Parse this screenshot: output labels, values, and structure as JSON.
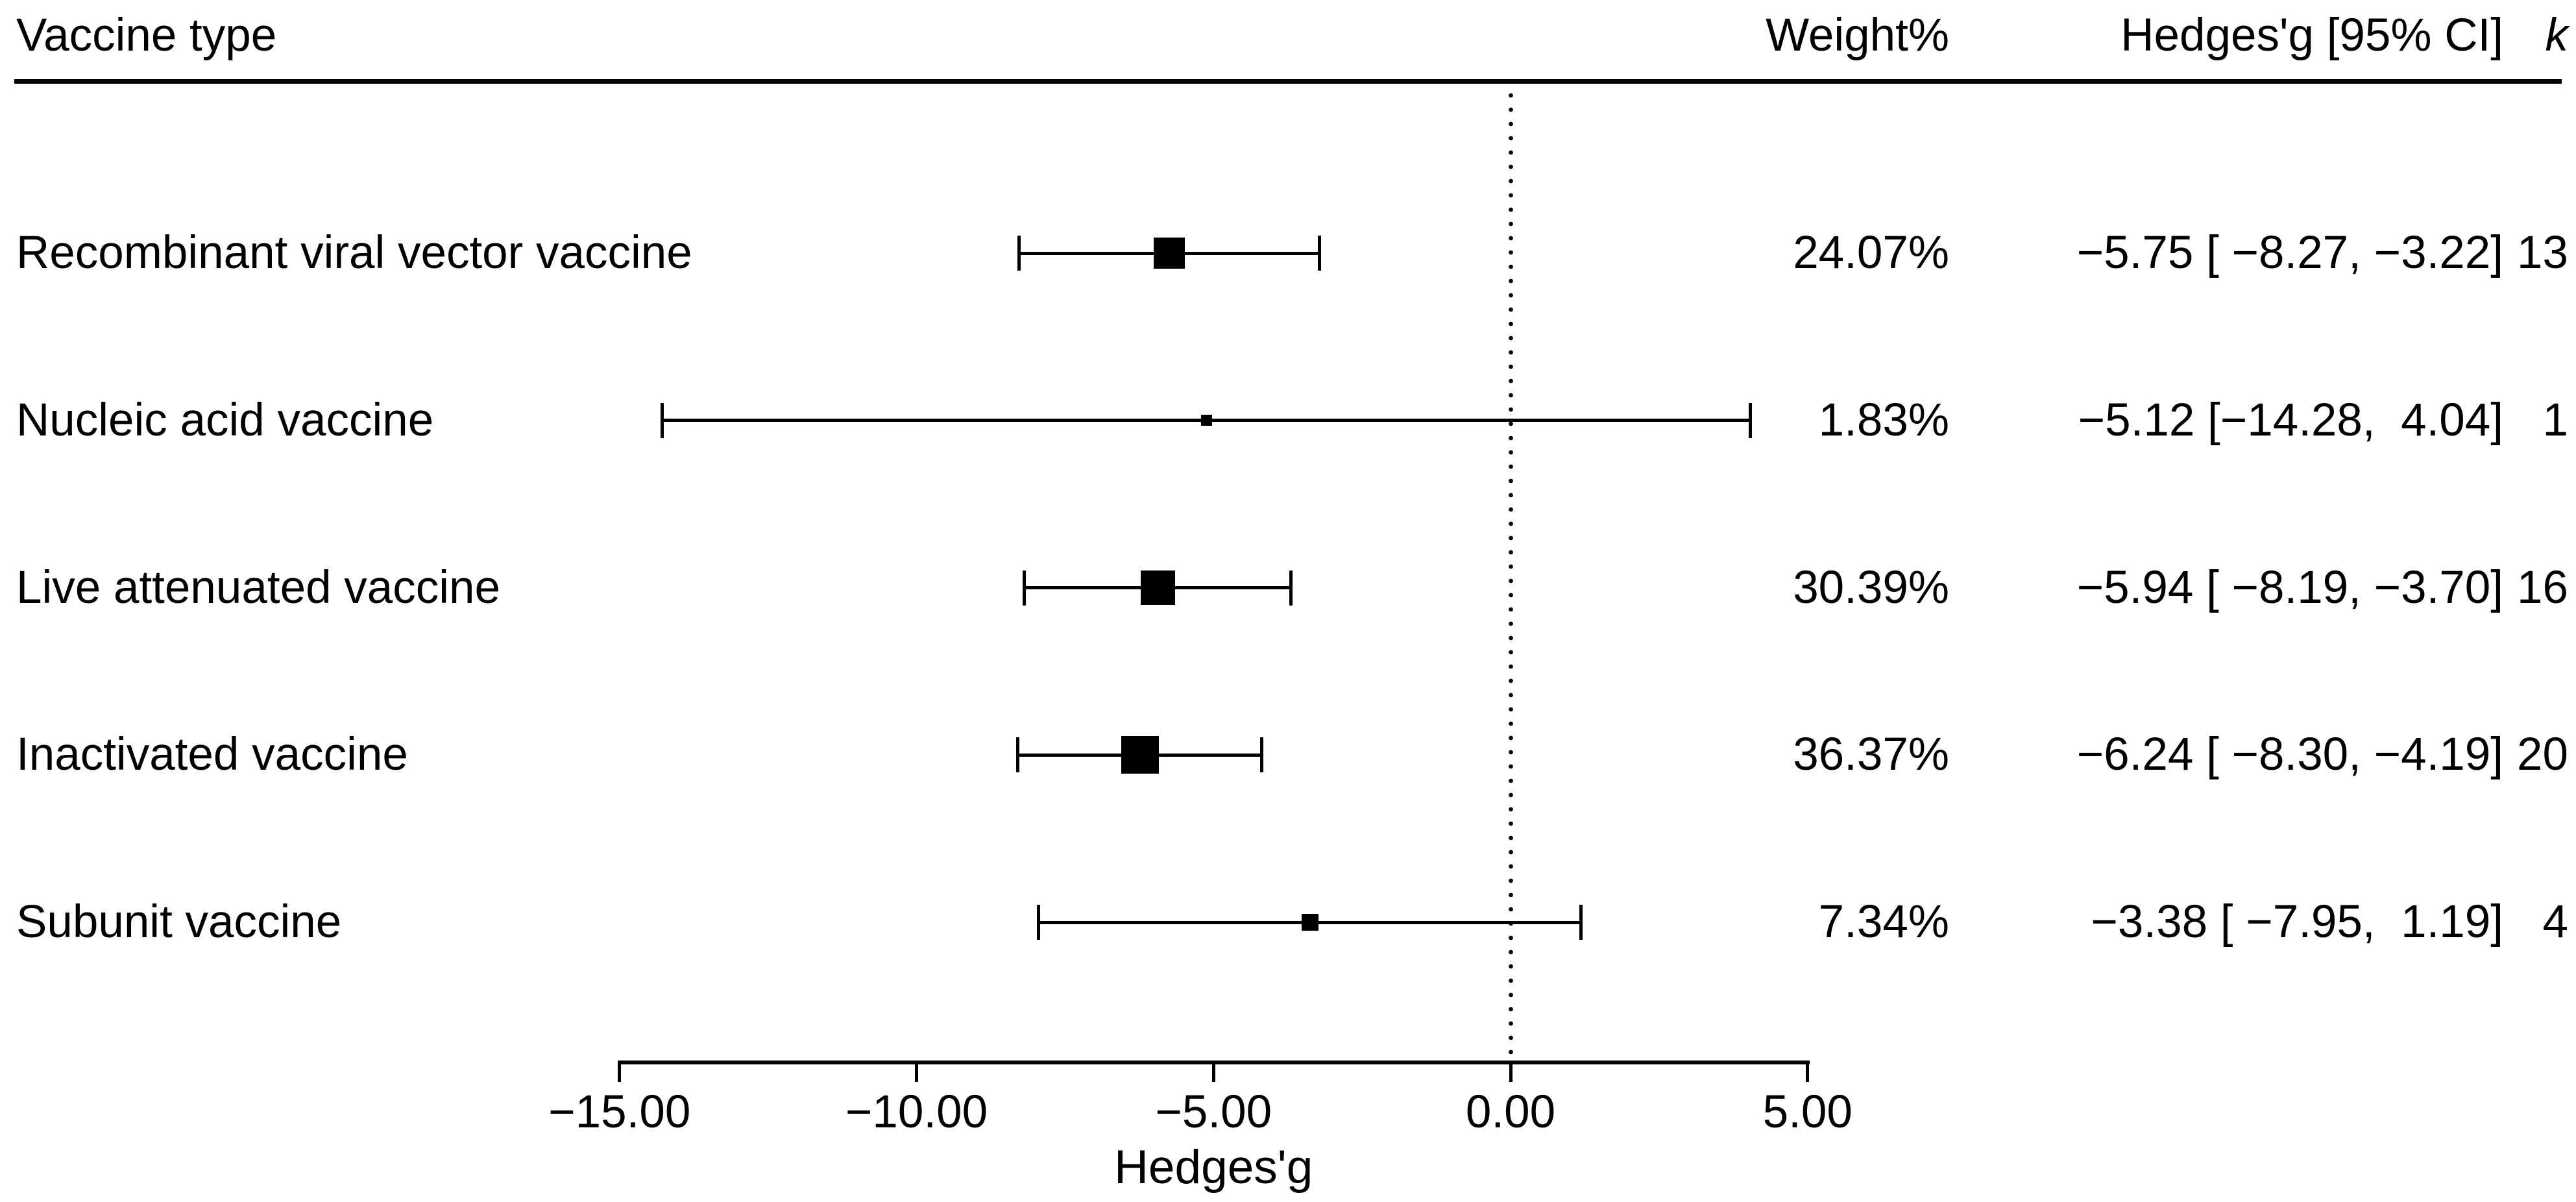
{
  "header": {
    "col_vaccine": "Vaccine type",
    "col_weight": "Weight%",
    "col_ci": "Hedges'g [95% CI]",
    "col_k": "k"
  },
  "chart_data": {
    "type": "forest",
    "title": "",
    "xlabel": "Hedges'g",
    "xlim": [
      -15,
      5
    ],
    "zero_line": 0,
    "x_ticks": [
      {
        "value": -15,
        "label": "−15.00"
      },
      {
        "value": -10,
        "label": "−10.00"
      },
      {
        "value": -5,
        "label": "−5.00"
      },
      {
        "value": 0,
        "label": "0.00"
      },
      {
        "value": 5,
        "label": "5.00"
      }
    ],
    "rows": [
      {
        "label": "Recombinant viral vector vaccine",
        "weight_pct": 24.07,
        "weight_text": "24.07%",
        "g": -5.75,
        "ci_lo": -8.27,
        "ci_hi": -3.22,
        "ci_text": "−5.75 [ −8.27, −3.22]",
        "k": "13"
      },
      {
        "label": "Nucleic acid vaccine",
        "weight_pct": 1.83,
        "weight_text": "1.83%",
        "g": -5.12,
        "ci_lo": -14.28,
        "ci_hi": 4.04,
        "ci_text": "−5.12 [−14.28,  4.04]",
        "k": "1"
      },
      {
        "label": "Live attenuated vaccine",
        "weight_pct": 30.39,
        "weight_text": "30.39%",
        "g": -5.94,
        "ci_lo": -8.19,
        "ci_hi": -3.7,
        "ci_text": "−5.94 [ −8.19, −3.70]",
        "k": "16"
      },
      {
        "label": "Inactivated vaccine",
        "weight_pct": 36.37,
        "weight_text": "36.37%",
        "g": -6.24,
        "ci_lo": -8.3,
        "ci_hi": -4.19,
        "ci_text": "−6.24 [ −8.30, −4.19]",
        "k": "20"
      },
      {
        "label": "Subunit vaccine",
        "weight_pct": 7.34,
        "weight_text": "7.34%",
        "g": -3.38,
        "ci_lo": -7.95,
        "ci_hi": 1.19,
        "ci_text": "−3.38 [ −7.95,  1.19]",
        "k": "4"
      }
    ],
    "colors": {
      "foreground": "#000000",
      "background": "#ffffff"
    },
    "legend": "none",
    "grid": false
  }
}
